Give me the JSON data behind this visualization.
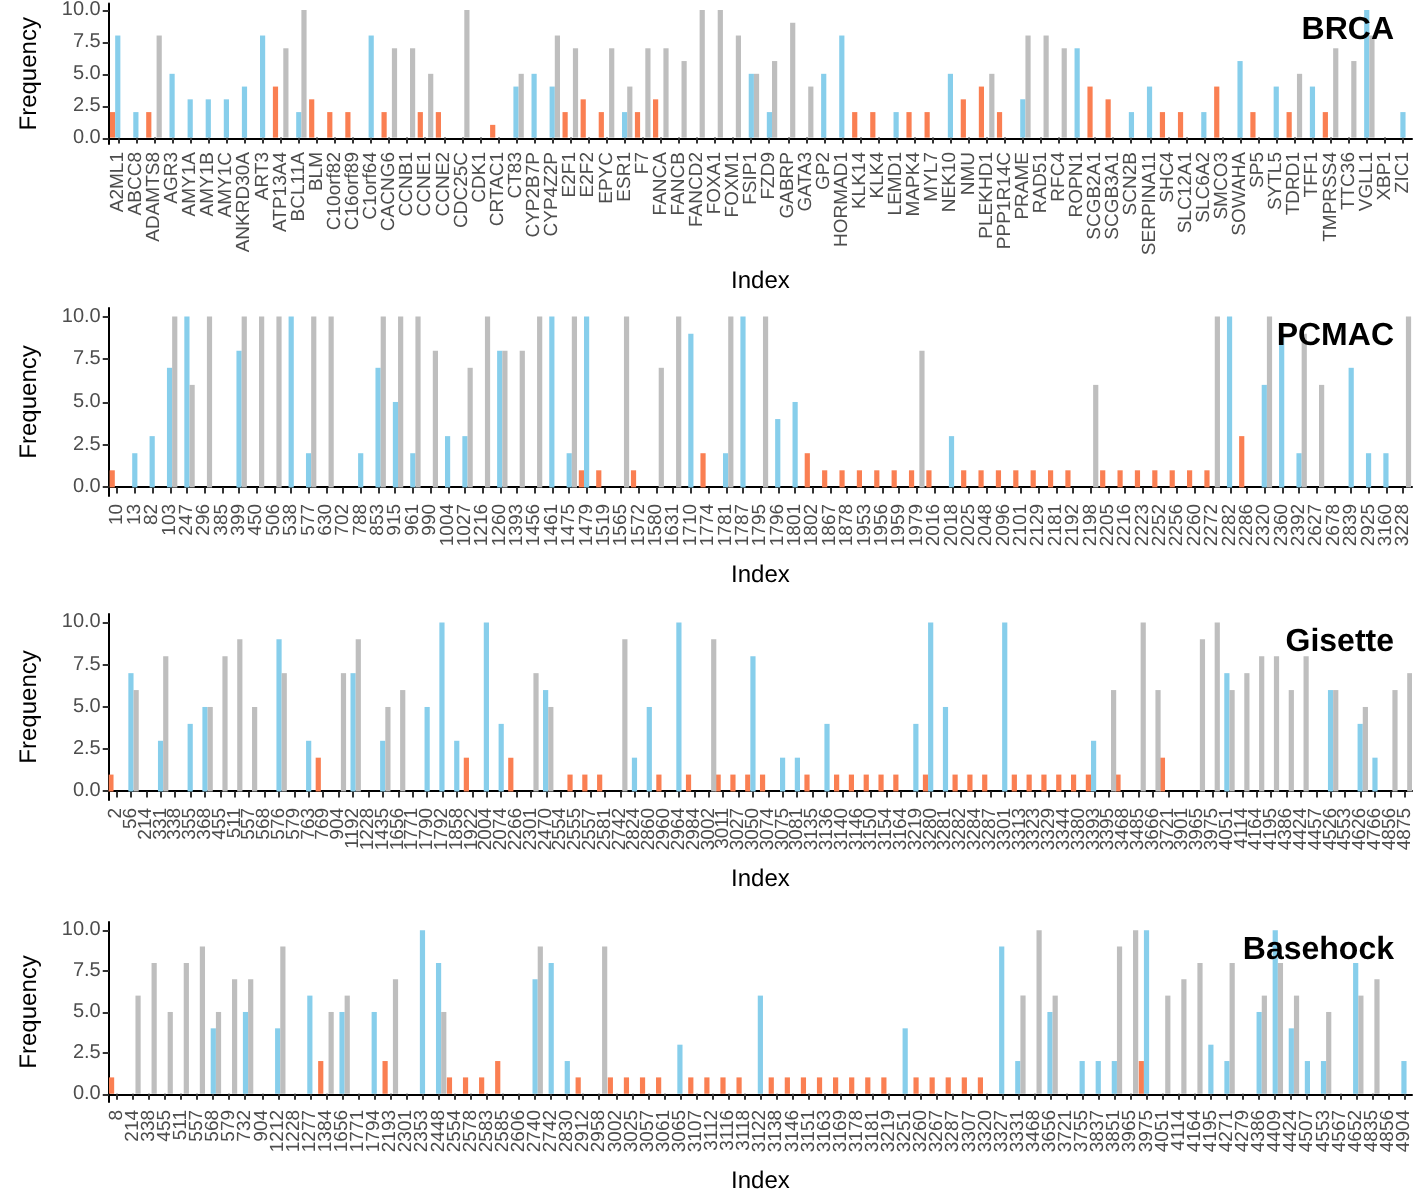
{
  "chart_data": [
    {
      "type": "bar",
      "title": "BRCA",
      "xlabel": "Index",
      "ylabel": "Frequency",
      "ylim": [
        -0.5,
        10.5
      ],
      "yticks": [
        {
          "value": 0,
          "label": "0.0"
        },
        {
          "value": 2.5,
          "label": "2.5"
        },
        {
          "value": 5,
          "label": "5.0"
        },
        {
          "value": 7.5,
          "label": "7.5"
        },
        {
          "value": 10,
          "label": "10.0"
        }
      ],
      "categories": [
        "A2ML1",
        "ABCC8",
        "ADAMTS8",
        "AGR3",
        "AMY1A",
        "AMY1B",
        "AMY1C",
        "ANKRD30A",
        "ART3",
        "ATP13A4",
        "BCL11A",
        "BLM",
        "C10orf82",
        "C16orf89",
        "C1orf64",
        "CACNG6",
        "CCNB1",
        "CCNE1",
        "CCNE2",
        "CDC25C",
        "CDK1",
        "CRTAC1",
        "CT83",
        "CYP2B7P",
        "CYP4Z2P",
        "E2F1",
        "E2F2",
        "EPYC",
        "ESR1",
        "F7",
        "FANCA",
        "FANCB",
        "FANCD2",
        "FOXA1",
        "FOXM1",
        "FSIP1",
        "FZD9",
        "GABRP",
        "GATA3",
        "GP2",
        "HORMAD1",
        "KLK14",
        "KLK4",
        "LEMD1",
        "MAPK4",
        "MYL7",
        "NEK10",
        "NMU",
        "PLEKHD1",
        "PPP1R14C",
        "PRAME",
        "RAD51",
        "RFC4",
        "ROPN1",
        "SCGB2A1",
        "SCGB3A1",
        "SCN2B",
        "SERPINA11",
        "SHC4",
        "SLC12A1",
        "SLC6A2",
        "SMCO3",
        "SOWAHA",
        "SP5",
        "SYTL5",
        "TDRD1",
        "TFF1",
        "TMPRSS4",
        "TTC36",
        "VGLL1",
        "XBP1",
        "ZIC1"
      ],
      "series": [
        {
          "color": "#fa7f52",
          "values": [
            2,
            null,
            2,
            null,
            null,
            null,
            null,
            null,
            null,
            4,
            null,
            3,
            2,
            2,
            null,
            2,
            null,
            2,
            2,
            null,
            null,
            1,
            null,
            null,
            null,
            2,
            3,
            2,
            null,
            2,
            3,
            null,
            null,
            null,
            null,
            null,
            null,
            null,
            null,
            null,
            null,
            2,
            2,
            null,
            2,
            2,
            null,
            3,
            4,
            2,
            null,
            null,
            null,
            null,
            4,
            3,
            null,
            null,
            2,
            2,
            null,
            4,
            null,
            2,
            null,
            2,
            null,
            2,
            null,
            null,
            null,
            null
          ]
        },
        {
          "color": "#87ceeb",
          "values": [
            8,
            2,
            null,
            5,
            3,
            3,
            3,
            4,
            8,
            null,
            2,
            null,
            null,
            null,
            8,
            null,
            null,
            null,
            null,
            null,
            null,
            null,
            4,
            5,
            4,
            null,
            null,
            null,
            2,
            null,
            null,
            null,
            null,
            null,
            null,
            5,
            2,
            null,
            null,
            5,
            8,
            null,
            null,
            2,
            null,
            null,
            5,
            null,
            null,
            null,
            3,
            null,
            null,
            7,
            null,
            null,
            2,
            4,
            null,
            null,
            2,
            null,
            6,
            null,
            4,
            null,
            4,
            null,
            null,
            10,
            null,
            2
          ]
        },
        {
          "color": "#bebebe",
          "values": [
            null,
            null,
            8,
            null,
            null,
            null,
            null,
            null,
            null,
            7,
            10,
            null,
            null,
            null,
            null,
            7,
            7,
            5,
            null,
            10,
            null,
            null,
            5,
            null,
            8,
            7,
            null,
            7,
            4,
            7,
            7,
            6,
            10,
            10,
            8,
            5,
            6,
            9,
            4,
            null,
            null,
            null,
            null,
            null,
            null,
            null,
            null,
            null,
            5,
            null,
            8,
            8,
            7,
            null,
            null,
            null,
            null,
            null,
            null,
            null,
            null,
            null,
            null,
            null,
            null,
            5,
            null,
            7,
            6,
            8,
            null,
            null
          ]
        }
      ]
    },
    {
      "type": "bar",
      "title": "PCMAC",
      "xlabel": "Index",
      "ylabel": "Frequency",
      "ylim": [
        -0.5,
        10.5
      ],
      "yticks": [
        {
          "value": 0,
          "label": "0.0"
        },
        {
          "value": 2.5,
          "label": "2.5"
        },
        {
          "value": 5,
          "label": "5.0"
        },
        {
          "value": 7.5,
          "label": "7.5"
        },
        {
          "value": 10,
          "label": "10.0"
        }
      ],
      "categories": [
        "10",
        "13",
        "82",
        "103",
        "247",
        "296",
        "385",
        "399",
        "450",
        "506",
        "538",
        "577",
        "630",
        "702",
        "788",
        "853",
        "915",
        "961",
        "990",
        "1004",
        "1027",
        "1216",
        "1260",
        "1393",
        "1456",
        "1461",
        "1475",
        "1479",
        "1519",
        "1565",
        "1572",
        "1580",
        "1631",
        "1710",
        "1774",
        "1781",
        "1787",
        "1795",
        "1796",
        "1801",
        "1802",
        "1867",
        "1878",
        "1953",
        "1956",
        "1959",
        "1979",
        "2016",
        "2018",
        "2025",
        "2048",
        "2096",
        "2101",
        "2129",
        "2181",
        "2192",
        "2198",
        "2205",
        "2216",
        "2223",
        "2252",
        "2256",
        "2260",
        "2272",
        "2282",
        "2286",
        "2320",
        "2360",
        "2392",
        "2627",
        "2678",
        "2839",
        "2925",
        "3160",
        "3228"
      ],
      "series": [
        {
          "color": "#fa7f52",
          "values": [
            1,
            null,
            null,
            null,
            null,
            null,
            null,
            null,
            null,
            null,
            null,
            null,
            null,
            null,
            null,
            null,
            null,
            null,
            null,
            null,
            null,
            null,
            null,
            null,
            null,
            null,
            null,
            1,
            1,
            null,
            1,
            null,
            null,
            null,
            2,
            null,
            null,
            null,
            null,
            null,
            2,
            1,
            1,
            1,
            1,
            1,
            1,
            1,
            null,
            1,
            1,
            1,
            1,
            1,
            1,
            1,
            null,
            1,
            1,
            1,
            1,
            1,
            1,
            1,
            null,
            3,
            null,
            null,
            null,
            null,
            null,
            null,
            null,
            null,
            null
          ]
        },
        {
          "color": "#87ceeb",
          "values": [
            null,
            2,
            3,
            7,
            10,
            null,
            null,
            8,
            null,
            null,
            10,
            2,
            null,
            null,
            2,
            7,
            5,
            2,
            null,
            3,
            3,
            null,
            8,
            null,
            null,
            10,
            2,
            10,
            null,
            null,
            null,
            null,
            null,
            9,
            null,
            2,
            10,
            null,
            4,
            5,
            null,
            null,
            null,
            null,
            null,
            null,
            null,
            null,
            3,
            null,
            null,
            null,
            null,
            null,
            null,
            null,
            null,
            null,
            null,
            null,
            null,
            null,
            null,
            null,
            10,
            null,
            6,
            9,
            2,
            null,
            null,
            7,
            2,
            2,
            null
          ]
        },
        {
          "color": "#bebebe",
          "values": [
            null,
            null,
            null,
            10,
            6,
            10,
            null,
            10,
            10,
            10,
            null,
            10,
            10,
            null,
            null,
            10,
            10,
            10,
            8,
            null,
            7,
            10,
            8,
            8,
            10,
            null,
            10,
            null,
            null,
            10,
            null,
            7,
            10,
            null,
            null,
            10,
            null,
            10,
            null,
            null,
            null,
            null,
            null,
            null,
            null,
            null,
            8,
            null,
            null,
            null,
            null,
            null,
            null,
            null,
            null,
            null,
            6,
            null,
            null,
            null,
            null,
            null,
            null,
            10,
            null,
            null,
            10,
            null,
            9,
            6,
            null,
            null,
            null,
            null,
            10
          ]
        }
      ]
    },
    {
      "type": "bar",
      "title": "Gisette",
      "xlabel": "Index",
      "ylabel": "Frequency",
      "ylim": [
        -0.5,
        10.5
      ],
      "yticks": [
        {
          "value": 0,
          "label": "0.0"
        },
        {
          "value": 2.5,
          "label": "2.5"
        },
        {
          "value": 5,
          "label": "5.0"
        },
        {
          "value": 7.5,
          "label": "7.5"
        },
        {
          "value": 10,
          "label": "10.0"
        }
      ],
      "categories": [
        "2",
        "56",
        "214",
        "331",
        "338",
        "355",
        "368",
        "455",
        "511",
        "557",
        "568",
        "576",
        "579",
        "763",
        "769",
        "904",
        "1192",
        "1228",
        "1435",
        "1656",
        "1771",
        "1790",
        "1792",
        "1858",
        "1922",
        "2004",
        "2074",
        "2266",
        "2301",
        "2470",
        "2554",
        "2555",
        "2557",
        "2581",
        "2742",
        "2824",
        "2860",
        "2960",
        "2964",
        "2984",
        "3002",
        "3011",
        "3027",
        "3050",
        "3074",
        "3075",
        "3081",
        "3135",
        "3136",
        "3140",
        "3146",
        "3150",
        "3154",
        "3164",
        "3219",
        "3280",
        "3281",
        "3282",
        "3284",
        "3287",
        "3301",
        "3313",
        "3323",
        "3329",
        "3344",
        "3380",
        "3393",
        "3395",
        "3468",
        "3485",
        "3666",
        "3721",
        "3901",
        "3965",
        "3975",
        "4051",
        "4114",
        "4164",
        "4195",
        "4386",
        "4424",
        "4457",
        "4526",
        "4553",
        "4626",
        "4766",
        "4856",
        "4875"
      ],
      "series": [
        {
          "color": "#fa7f52",
          "values": [
            1,
            null,
            null,
            null,
            null,
            null,
            null,
            null,
            null,
            null,
            null,
            null,
            null,
            null,
            2,
            null,
            null,
            null,
            null,
            null,
            null,
            null,
            null,
            null,
            2,
            null,
            null,
            2,
            null,
            null,
            null,
            1,
            1,
            1,
            null,
            null,
            null,
            1,
            null,
            1,
            null,
            1,
            1,
            1,
            1,
            null,
            null,
            1,
            null,
            1,
            1,
            1,
            1,
            1,
            null,
            1,
            null,
            1,
            1,
            1,
            null,
            1,
            1,
            1,
            1,
            1,
            1,
            null,
            1,
            null,
            null,
            2,
            null,
            null,
            null,
            null,
            null,
            null,
            null,
            null,
            null,
            null,
            null,
            null,
            null,
            null,
            null,
            null
          ]
        },
        {
          "color": "#87ceeb",
          "values": [
            null,
            7,
            null,
            3,
            null,
            4,
            5,
            null,
            null,
            null,
            null,
            9,
            null,
            3,
            null,
            null,
            7,
            null,
            3,
            null,
            null,
            5,
            10,
            3,
            null,
            10,
            4,
            null,
            null,
            6,
            null,
            null,
            null,
            null,
            null,
            2,
            5,
            null,
            10,
            null,
            null,
            null,
            null,
            8,
            null,
            2,
            2,
            null,
            4,
            null,
            null,
            null,
            null,
            null,
            4,
            10,
            5,
            null,
            null,
            null,
            10,
            null,
            null,
            null,
            null,
            null,
            3,
            null,
            null,
            null,
            null,
            null,
            null,
            null,
            null,
            7,
            null,
            null,
            null,
            null,
            null,
            null,
            6,
            null,
            4,
            2,
            null,
            null
          ]
        },
        {
          "color": "#bebebe",
          "values": [
            null,
            6,
            null,
            8,
            null,
            null,
            5,
            8,
            9,
            5,
            null,
            7,
            null,
            null,
            null,
            7,
            9,
            null,
            5,
            6,
            null,
            null,
            null,
            null,
            null,
            null,
            null,
            null,
            7,
            5,
            null,
            null,
            null,
            null,
            9,
            null,
            null,
            null,
            null,
            null,
            9,
            null,
            null,
            null,
            null,
            null,
            null,
            null,
            null,
            null,
            null,
            null,
            null,
            null,
            null,
            null,
            null,
            null,
            null,
            null,
            null,
            null,
            null,
            null,
            null,
            null,
            null,
            6,
            null,
            10,
            6,
            null,
            null,
            9,
            10,
            6,
            7,
            8,
            8,
            6,
            8,
            null,
            6,
            null,
            5,
            null,
            6,
            7
          ]
        }
      ]
    },
    {
      "type": "bar",
      "title": "Basehock",
      "xlabel": "Index",
      "ylabel": "Frequency",
      "ylim": [
        -0.5,
        10.5
      ],
      "yticks": [
        {
          "value": 0,
          "label": "0.0"
        },
        {
          "value": 2.5,
          "label": "2.5"
        },
        {
          "value": 5,
          "label": "5.0"
        },
        {
          "value": 7.5,
          "label": "7.5"
        },
        {
          "value": 10,
          "label": "10.0"
        }
      ],
      "categories": [
        "8",
        "214",
        "338",
        "455",
        "511",
        "557",
        "568",
        "579",
        "732",
        "904",
        "1212",
        "1228",
        "1277",
        "1384",
        "1656",
        "1771",
        "1794",
        "2193",
        "2301",
        "2353",
        "2448",
        "2554",
        "2578",
        "2583",
        "2585",
        "2606",
        "2740",
        "2742",
        "2830",
        "2912",
        "2958",
        "3002",
        "3025",
        "3057",
        "3061",
        "3065",
        "3107",
        "3112",
        "3116",
        "3118",
        "3122",
        "3138",
        "3146",
        "3151",
        "3163",
        "3169",
        "3178",
        "3181",
        "3219",
        "3251",
        "3260",
        "3267",
        "3287",
        "3307",
        "3320",
        "3327",
        "3331",
        "3468",
        "3656",
        "3721",
        "3755",
        "3837",
        "3851",
        "3965",
        "3975",
        "4051",
        "4114",
        "4164",
        "4195",
        "4271",
        "4279",
        "4386",
        "4409",
        "4424",
        "4507",
        "4553",
        "4567",
        "4652",
        "4835",
        "4856",
        "4904"
      ],
      "series": [
        {
          "color": "#fa7f52",
          "values": [
            1,
            null,
            null,
            null,
            null,
            null,
            null,
            null,
            null,
            null,
            null,
            null,
            null,
            2,
            null,
            null,
            null,
            2,
            null,
            null,
            null,
            1,
            1,
            1,
            2,
            null,
            null,
            null,
            null,
            1,
            null,
            1,
            1,
            1,
            1,
            null,
            1,
            1,
            1,
            1,
            null,
            1,
            1,
            1,
            1,
            1,
            1,
            1,
            1,
            null,
            1,
            1,
            1,
            1,
            1,
            null,
            null,
            null,
            null,
            null,
            null,
            null,
            null,
            null,
            2,
            null,
            null,
            null,
            null,
            null,
            null,
            null,
            null,
            null,
            null,
            null,
            null,
            null,
            null,
            null,
            null
          ]
        },
        {
          "color": "#87ceeb",
          "values": [
            null,
            null,
            null,
            null,
            null,
            null,
            4,
            null,
            5,
            null,
            4,
            null,
            6,
            null,
            5,
            null,
            5,
            null,
            null,
            10,
            8,
            null,
            null,
            null,
            null,
            null,
            7,
            8,
            2,
            null,
            null,
            null,
            null,
            null,
            null,
            3,
            null,
            null,
            null,
            null,
            6,
            null,
            null,
            null,
            null,
            null,
            null,
            null,
            null,
            4,
            null,
            null,
            null,
            null,
            null,
            9,
            2,
            null,
            5,
            null,
            2,
            2,
            2,
            null,
            10,
            null,
            null,
            null,
            3,
            2,
            null,
            5,
            10,
            4,
            2,
            2,
            null,
            8,
            null,
            null,
            2
          ]
        },
        {
          "color": "#bebebe",
          "values": [
            null,
            6,
            8,
            5,
            8,
            9,
            5,
            7,
            7,
            null,
            9,
            null,
            null,
            5,
            6,
            null,
            null,
            7,
            null,
            null,
            5,
            null,
            null,
            null,
            null,
            null,
            9,
            null,
            null,
            null,
            9,
            null,
            null,
            null,
            null,
            null,
            null,
            null,
            null,
            null,
            null,
            null,
            null,
            null,
            null,
            null,
            null,
            null,
            null,
            null,
            null,
            null,
            null,
            null,
            null,
            null,
            6,
            10,
            6,
            null,
            null,
            null,
            9,
            10,
            null,
            6,
            7,
            8,
            null,
            8,
            null,
            6,
            8,
            6,
            null,
            5,
            null,
            6,
            7,
            null,
            null
          ]
        }
      ]
    }
  ]
}
